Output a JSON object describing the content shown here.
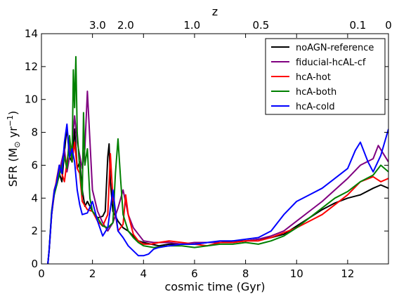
{
  "chart_data": {
    "type": "line",
    "xlabel": "cosmic time (Gyr)",
    "ylabel_main": "SFR (M",
    "ylabel_sun": "⊙",
    "ylabel_unit": " yr",
    "ylabel_exp": "−1",
    "ylabel_close": ")",
    "top_axis_label": "z",
    "xlim": [
      0,
      13.6
    ],
    "ylim": [
      0,
      14
    ],
    "x_ticks": [
      0,
      2,
      4,
      6,
      8,
      10,
      12
    ],
    "y_ticks": [
      0,
      2,
      4,
      6,
      8,
      10,
      12,
      14
    ],
    "top_ticks": [
      {
        "label": "3.0",
        "t": 2.2
      },
      {
        "label": "2.0",
        "t": 3.3
      },
      {
        "label": "1.0",
        "t": 5.9
      },
      {
        "label": "0.5",
        "t": 8.6
      },
      {
        "label": "0.1",
        "t": 12.4
      },
      {
        "label": "0",
        "t": 13.6
      }
    ],
    "legend_position": "top-right",
    "grid": false,
    "series": [
      {
        "name": "noAGN-reference",
        "color": "#000000",
        "points": [
          [
            0.25,
            0
          ],
          [
            0.3,
            0.8
          ],
          [
            0.4,
            3.0
          ],
          [
            0.5,
            4.4
          ],
          [
            0.6,
            4.8
          ],
          [
            0.7,
            5.5
          ],
          [
            0.8,
            5.0
          ],
          [
            0.9,
            6.8
          ],
          [
            1.0,
            8.3
          ],
          [
            1.1,
            6.5
          ],
          [
            1.2,
            6.2
          ],
          [
            1.3,
            8.2
          ],
          [
            1.4,
            5.8
          ],
          [
            1.5,
            6.2
          ],
          [
            1.6,
            4.5
          ],
          [
            1.7,
            3.5
          ],
          [
            1.8,
            3.8
          ],
          [
            2.0,
            3.2
          ],
          [
            2.2,
            2.8
          ],
          [
            2.4,
            2.9
          ],
          [
            2.5,
            3.2
          ],
          [
            2.6,
            6.5
          ],
          [
            2.65,
            7.3
          ],
          [
            2.7,
            5.0
          ],
          [
            2.8,
            3.2
          ],
          [
            3.0,
            2.6
          ],
          [
            3.2,
            2.2
          ],
          [
            3.4,
            2.0
          ],
          [
            3.6,
            1.7
          ],
          [
            3.8,
            1.4
          ],
          [
            4.0,
            1.3
          ],
          [
            4.3,
            1.2
          ],
          [
            4.6,
            1.1
          ],
          [
            5.0,
            1.2
          ],
          [
            5.5,
            1.2
          ],
          [
            6.0,
            1.2
          ],
          [
            6.5,
            1.3
          ],
          [
            7.0,
            1.3
          ],
          [
            7.5,
            1.4
          ],
          [
            8.0,
            1.4
          ],
          [
            8.5,
            1.5
          ],
          [
            9.0,
            1.6
          ],
          [
            9.5,
            1.8
          ],
          [
            10.0,
            2.3
          ],
          [
            10.5,
            2.8
          ],
          [
            11.0,
            3.3
          ],
          [
            11.5,
            3.7
          ],
          [
            12.0,
            4.0
          ],
          [
            12.5,
            4.2
          ],
          [
            13.0,
            4.6
          ],
          [
            13.3,
            4.8
          ],
          [
            13.6,
            4.6
          ]
        ]
      },
      {
        "name": "fiducial-hcAL-cf",
        "color": "#800080",
        "points": [
          [
            0.25,
            0
          ],
          [
            0.3,
            0.8
          ],
          [
            0.4,
            3.2
          ],
          [
            0.5,
            4.5
          ],
          [
            0.7,
            5.6
          ],
          [
            0.9,
            7.0
          ],
          [
            1.0,
            5.6
          ],
          [
            1.1,
            6.5
          ],
          [
            1.2,
            7.2
          ],
          [
            1.3,
            9.0
          ],
          [
            1.4,
            7.4
          ],
          [
            1.5,
            6.6
          ],
          [
            1.6,
            5.8
          ],
          [
            1.7,
            7.0
          ],
          [
            1.8,
            10.5
          ],
          [
            1.9,
            7.5
          ],
          [
            2.0,
            4.5
          ],
          [
            2.2,
            3.2
          ],
          [
            2.4,
            2.5
          ],
          [
            2.6,
            2.0
          ],
          [
            2.8,
            2.5
          ],
          [
            3.0,
            3.4
          ],
          [
            3.2,
            4.5
          ],
          [
            3.4,
            3.0
          ],
          [
            3.6,
            2.2
          ],
          [
            3.8,
            1.8
          ],
          [
            4.0,
            1.4
          ],
          [
            4.4,
            1.3
          ],
          [
            5.0,
            1.3
          ],
          [
            5.5,
            1.2
          ],
          [
            6.0,
            1.3
          ],
          [
            6.5,
            1.3
          ],
          [
            7.0,
            1.3
          ],
          [
            7.5,
            1.3
          ],
          [
            8.0,
            1.4
          ],
          [
            8.5,
            1.5
          ],
          [
            9.0,
            1.7
          ],
          [
            9.5,
            2.0
          ],
          [
            10.0,
            2.6
          ],
          [
            10.5,
            3.2
          ],
          [
            11.0,
            3.8
          ],
          [
            11.5,
            4.5
          ],
          [
            12.0,
            5.2
          ],
          [
            12.5,
            6.0
          ],
          [
            13.0,
            6.4
          ],
          [
            13.2,
            7.2
          ],
          [
            13.6,
            6.2
          ]
        ]
      },
      {
        "name": "hcA-hot",
        "color": "#ff0000",
        "points": [
          [
            0.25,
            0
          ],
          [
            0.3,
            0.8
          ],
          [
            0.4,
            3.0
          ],
          [
            0.5,
            4.2
          ],
          [
            0.6,
            5.2
          ],
          [
            0.7,
            6.0
          ],
          [
            0.9,
            5.0
          ],
          [
            1.0,
            6.2
          ],
          [
            1.1,
            7.3
          ],
          [
            1.2,
            6.2
          ],
          [
            1.3,
            7.4
          ],
          [
            1.4,
            5.8
          ],
          [
            1.5,
            5.5
          ],
          [
            1.6,
            3.8
          ],
          [
            1.8,
            3.3
          ],
          [
            2.0,
            3.2
          ],
          [
            2.2,
            2.6
          ],
          [
            2.4,
            2.3
          ],
          [
            2.6,
            3.0
          ],
          [
            2.7,
            6.7
          ],
          [
            2.8,
            4.0
          ],
          [
            3.0,
            2.0
          ],
          [
            3.2,
            2.4
          ],
          [
            3.3,
            4.2
          ],
          [
            3.4,
            3.0
          ],
          [
            3.6,
            1.8
          ],
          [
            3.8,
            1.4
          ],
          [
            4.0,
            1.2
          ],
          [
            4.3,
            1.2
          ],
          [
            4.6,
            1.3
          ],
          [
            5.0,
            1.4
          ],
          [
            5.5,
            1.3
          ],
          [
            6.0,
            1.2
          ],
          [
            6.5,
            1.1
          ],
          [
            7.0,
            1.3
          ],
          [
            7.5,
            1.3
          ],
          [
            8.0,
            1.4
          ],
          [
            8.5,
            1.4
          ],
          [
            9.0,
            1.6
          ],
          [
            9.5,
            1.9
          ],
          [
            10.0,
            2.2
          ],
          [
            10.5,
            2.6
          ],
          [
            11.0,
            3.0
          ],
          [
            11.5,
            3.6
          ],
          [
            12.0,
            4.2
          ],
          [
            12.5,
            5.0
          ],
          [
            13.0,
            5.3
          ],
          [
            13.3,
            5.0
          ],
          [
            13.6,
            5.2
          ]
        ]
      },
      {
        "name": "hcA-both",
        "color": "#008000",
        "points": [
          [
            0.25,
            0
          ],
          [
            0.3,
            0.8
          ],
          [
            0.4,
            3.2
          ],
          [
            0.5,
            4.2
          ],
          [
            0.7,
            5.4
          ],
          [
            0.9,
            6.5
          ],
          [
            1.0,
            5.8
          ],
          [
            1.1,
            7.8
          ],
          [
            1.2,
            6.2
          ],
          [
            1.25,
            11.8
          ],
          [
            1.3,
            9.5
          ],
          [
            1.35,
            12.6
          ],
          [
            1.4,
            8.0
          ],
          [
            1.5,
            5.8
          ],
          [
            1.6,
            4.2
          ],
          [
            1.65,
            9.2
          ],
          [
            1.7,
            6.0
          ],
          [
            1.8,
            7.0
          ],
          [
            1.9,
            4.0
          ],
          [
            2.0,
            3.2
          ],
          [
            2.2,
            2.8
          ],
          [
            2.4,
            2.3
          ],
          [
            2.6,
            2.2
          ],
          [
            2.8,
            2.5
          ],
          [
            2.9,
            5.5
          ],
          [
            3.0,
            7.6
          ],
          [
            3.1,
            5.2
          ],
          [
            3.2,
            3.0
          ],
          [
            3.4,
            2.0
          ],
          [
            3.6,
            1.6
          ],
          [
            3.8,
            1.3
          ],
          [
            4.0,
            1.1
          ],
          [
            4.4,
            1.0
          ],
          [
            5.0,
            1.1
          ],
          [
            5.5,
            1.1
          ],
          [
            6.0,
            1.0
          ],
          [
            6.5,
            1.1
          ],
          [
            7.0,
            1.2
          ],
          [
            7.5,
            1.2
          ],
          [
            8.0,
            1.3
          ],
          [
            8.5,
            1.2
          ],
          [
            9.0,
            1.4
          ],
          [
            9.5,
            1.7
          ],
          [
            10.0,
            2.2
          ],
          [
            10.5,
            2.8
          ],
          [
            11.0,
            3.4
          ],
          [
            11.5,
            4.0
          ],
          [
            12.0,
            4.4
          ],
          [
            12.5,
            5.0
          ],
          [
            13.0,
            5.4
          ],
          [
            13.3,
            6.0
          ],
          [
            13.6,
            5.6
          ]
        ]
      },
      {
        "name": "hcA-cold",
        "color": "#0000ff",
        "points": [
          [
            0.25,
            0
          ],
          [
            0.3,
            0.8
          ],
          [
            0.4,
            3.0
          ],
          [
            0.5,
            4.4
          ],
          [
            0.6,
            5.0
          ],
          [
            0.7,
            6.0
          ],
          [
            0.8,
            5.5
          ],
          [
            0.9,
            7.4
          ],
          [
            1.0,
            8.5
          ],
          [
            1.1,
            6.5
          ],
          [
            1.2,
            7.0
          ],
          [
            1.3,
            6.2
          ],
          [
            1.4,
            4.5
          ],
          [
            1.5,
            3.6
          ],
          [
            1.6,
            3.0
          ],
          [
            1.8,
            3.1
          ],
          [
            2.0,
            3.8
          ],
          [
            2.2,
            2.6
          ],
          [
            2.4,
            1.7
          ],
          [
            2.6,
            2.2
          ],
          [
            2.8,
            4.5
          ],
          [
            2.9,
            3.2
          ],
          [
            3.0,
            2.0
          ],
          [
            3.2,
            1.6
          ],
          [
            3.4,
            1.1
          ],
          [
            3.6,
            0.8
          ],
          [
            3.8,
            0.5
          ],
          [
            4.0,
            0.5
          ],
          [
            4.2,
            0.6
          ],
          [
            4.4,
            0.9
          ],
          [
            4.6,
            1.0
          ],
          [
            5.0,
            1.1
          ],
          [
            5.5,
            1.2
          ],
          [
            6.0,
            1.2
          ],
          [
            6.5,
            1.3
          ],
          [
            7.0,
            1.4
          ],
          [
            7.5,
            1.4
          ],
          [
            8.0,
            1.5
          ],
          [
            8.5,
            1.6
          ],
          [
            9.0,
            2.0
          ],
          [
            9.5,
            3.0
          ],
          [
            10.0,
            3.8
          ],
          [
            10.5,
            4.2
          ],
          [
            11.0,
            4.6
          ],
          [
            11.5,
            5.2
          ],
          [
            12.0,
            5.8
          ],
          [
            12.3,
            6.9
          ],
          [
            12.5,
            7.4
          ],
          [
            12.8,
            6.2
          ],
          [
            13.0,
            5.6
          ],
          [
            13.3,
            6.6
          ],
          [
            13.6,
            8.2
          ]
        ]
      }
    ]
  }
}
